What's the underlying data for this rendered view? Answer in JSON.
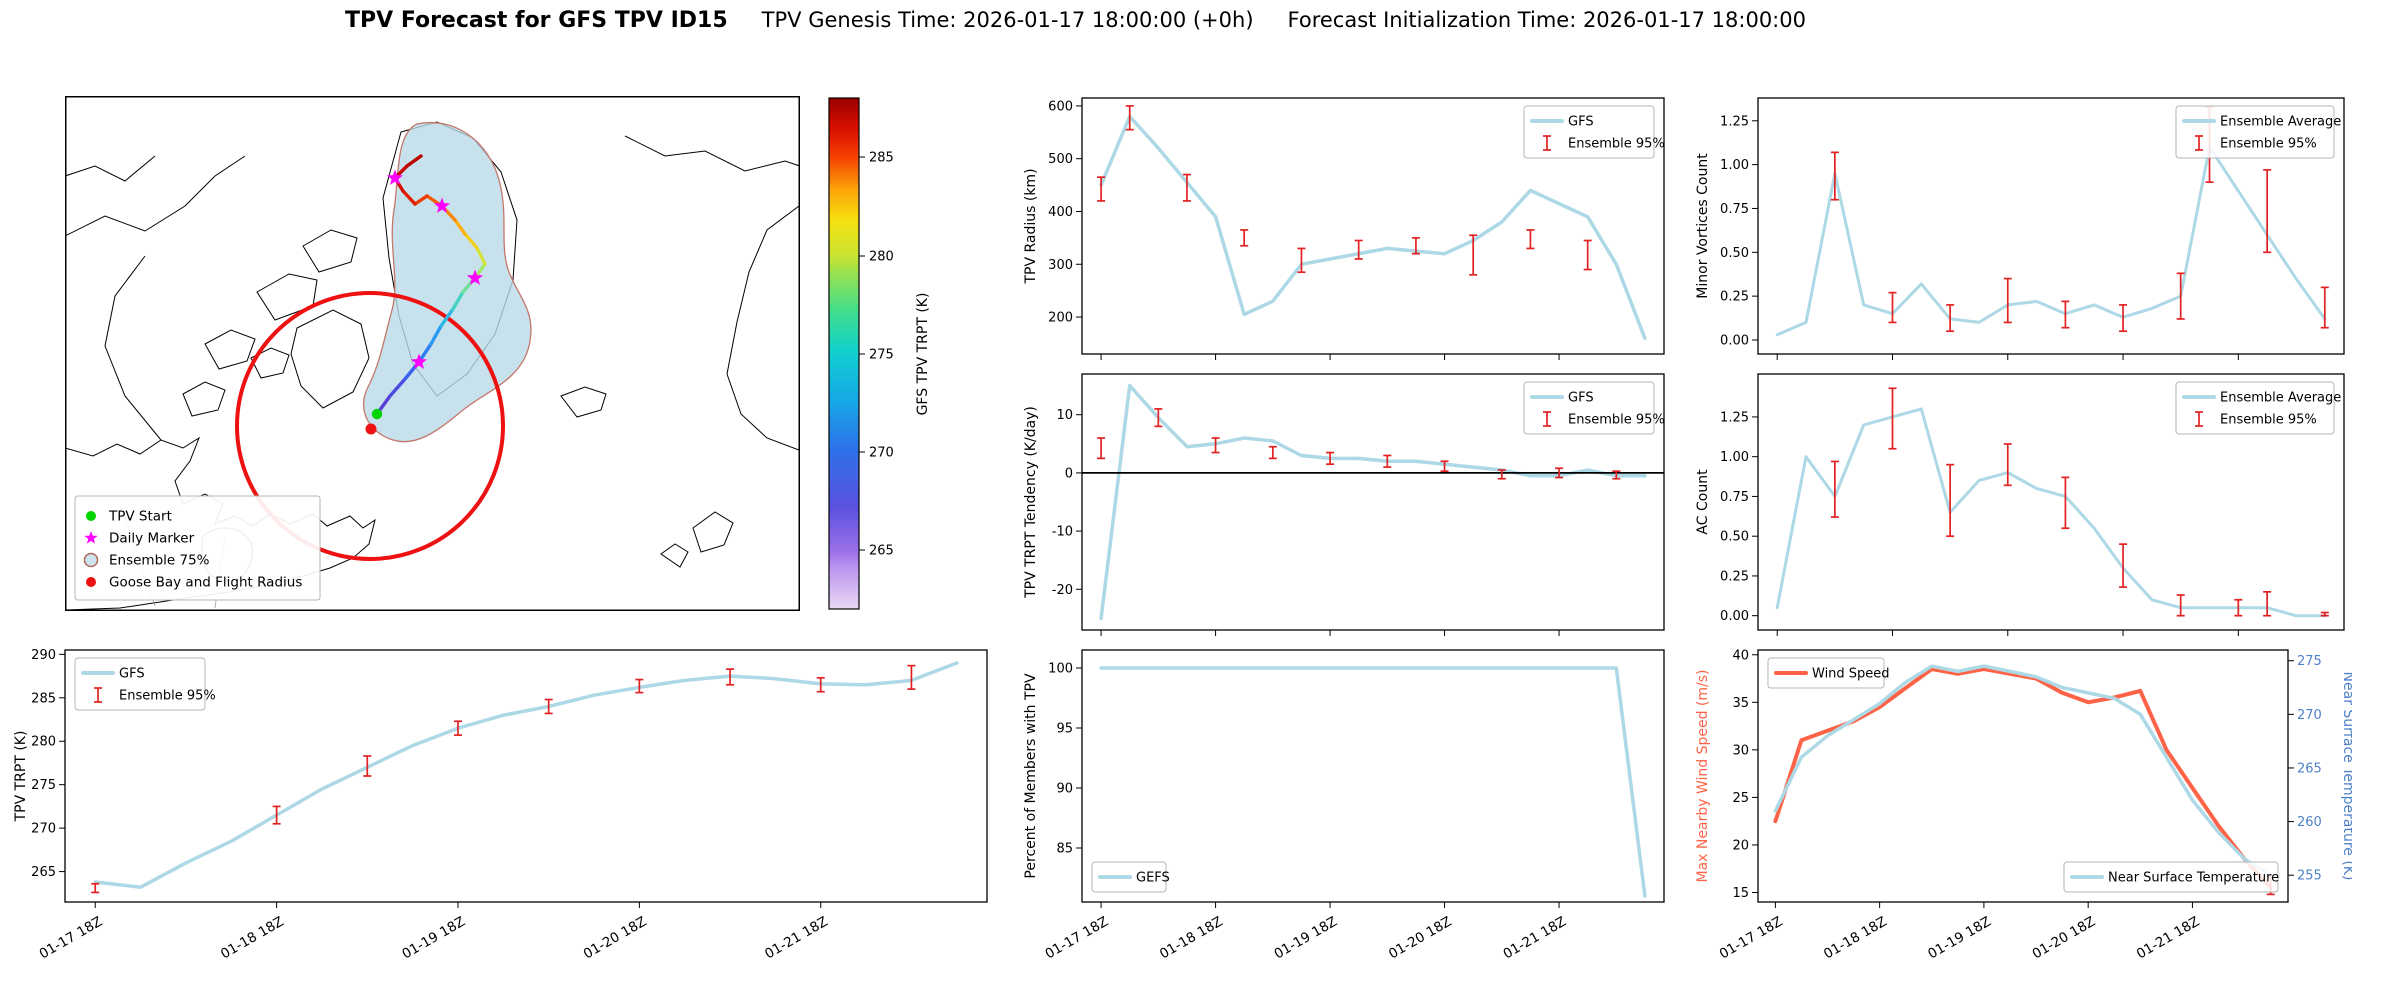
{
  "title": {
    "main": "TPV Forecast for GFS TPV ID15",
    "genesis": "TPV Genesis Time: 2026-01-17 18:00:00 (+0h)",
    "init": "Forecast Initialization Time: 2026-01-17 18:00:00"
  },
  "colors": {
    "ensemble_line": "#add8e6",
    "error_bar": "#e22222",
    "wind_line": "#ff6347",
    "temp_axis": "#4f81c7",
    "flight_circle": "#ee1111",
    "ensemble_region_fill": "#b9dbe7",
    "ensemble_region_edge": "#c4766a"
  },
  "map": {
    "legend": [
      {
        "label": "TPV Start",
        "marker": "dot",
        "color": "#00d500"
      },
      {
        "label": "Daily Marker",
        "marker": "star",
        "color": "#ff00ff"
      },
      {
        "label": "Ensemble 75%",
        "marker": "ring",
        "color": "#b06858"
      },
      {
        "label": "Goose Bay and Flight Radius",
        "marker": "dot",
        "color": "#ee1111"
      }
    ],
    "colorbar": {
      "label": "GFS TPV TRPT (K)",
      "ticks": [
        "265",
        "270",
        "275",
        "280",
        "285"
      ]
    },
    "track": {
      "points": [
        [
          312,
          318
        ],
        [
          325,
          300
        ],
        [
          340,
          283
        ],
        [
          354,
          266
        ],
        [
          366,
          248
        ],
        [
          376,
          230
        ],
        [
          388,
          213
        ],
        [
          398,
          196
        ],
        [
          410,
          182
        ],
        [
          420,
          168
        ],
        [
          412,
          152
        ],
        [
          400,
          138
        ],
        [
          390,
          124
        ],
        [
          377,
          110
        ],
        [
          362,
          100
        ],
        [
          350,
          108
        ],
        [
          338,
          95
        ],
        [
          330,
          82
        ],
        [
          342,
          70
        ],
        [
          356,
          60
        ]
      ],
      "colors": [
        "#5b3fd4",
        "#4a4ae0",
        "#3a60ec",
        "#2f7df2",
        "#2a9bf0",
        "#2fb9e2",
        "#45d2c2",
        "#6fe09a",
        "#a2e668",
        "#d4e33c",
        "#f2cf1f",
        "#fcae0e",
        "#fb8605",
        "#f55c02",
        "#ec3a01",
        "#e02000",
        "#d41000",
        "#c80500",
        "#bb0000"
      ],
      "star_indices": [
        3,
        8,
        13,
        17
      ],
      "star_color": "#ff00ff",
      "start_color": "#00d500"
    },
    "goose_bay_xy": [
      306,
      333
    ],
    "goose_bay_color": "#ee1111"
  },
  "chart_data": {
    "time": {
      "hours": [
        0,
        6,
        12,
        18,
        24,
        30,
        36,
        42,
        48,
        54,
        60,
        66,
        72,
        78,
        84,
        90,
        96,
        102,
        108,
        114
      ],
      "xlim": [
        -4,
        118
      ],
      "tick_hours": [
        0,
        24,
        48,
        72,
        96
      ],
      "tick_labels": [
        "01-17 18Z",
        "01-18 18Z",
        "01-19 18Z",
        "01-20 18Z",
        "01-21 18Z"
      ]
    },
    "charts": {
      "tpv_trpt": {
        "type": "line",
        "ylabel": "TPV TRPT (K)",
        "ylim": [
          261.5,
          290.5
        ],
        "yticks": [
          [
            265,
            "265"
          ],
          [
            270,
            "270"
          ],
          [
            275,
            "275"
          ],
          [
            280,
            "280"
          ],
          [
            285,
            "285"
          ],
          [
            290,
            "290"
          ]
        ],
        "show_x_labels": true,
        "legends": [
          {
            "pos": "top-left",
            "entries": [
              {
                "type": "line",
                "label": "GFS",
                "color": "#add8e6"
              },
              {
                "type": "err",
                "label": "Ensemble 95%"
              }
            ]
          }
        ],
        "series": [
          {
            "name": "GFS",
            "color": "#add8e6",
            "width": 3.5,
            "values": [
              263.8,
              263.2,
              266.0,
              268.5,
              271.5,
              274.5,
              277.0,
              279.5,
              281.5,
              283.0,
              284.0,
              285.3,
              286.2,
              287.0,
              287.5,
              287.2,
              286.6,
              286.5,
              287.0,
              289.0
            ]
          }
        ],
        "errorbars": [
          [
            0,
            262.6,
            263.6
          ],
          [
            24,
            270.5,
            272.5
          ],
          [
            36,
            276.0,
            278.3
          ],
          [
            48,
            280.7,
            282.3
          ],
          [
            60,
            283.2,
            284.8
          ],
          [
            72,
            285.6,
            287.1
          ],
          [
            84,
            286.5,
            288.3
          ],
          [
            96,
            285.7,
            287.3
          ],
          [
            108,
            286.0,
            288.7
          ]
        ]
      },
      "tpv_radius": {
        "type": "line",
        "ylabel": "TPV Radius (km)",
        "ylim": [
          130,
          615
        ],
        "yticks": [
          [
            200,
            "200"
          ],
          [
            300,
            "300"
          ],
          [
            400,
            "400"
          ],
          [
            500,
            "500"
          ],
          [
            600,
            "600"
          ]
        ],
        "show_x_labels": false,
        "legends": [
          {
            "pos": "top-right",
            "entries": [
              {
                "type": "line",
                "label": "GFS",
                "color": "#add8e6"
              },
              {
                "type": "err",
                "label": "Ensemble 95%"
              }
            ]
          }
        ],
        "series": [
          {
            "name": "GFS",
            "color": "#add8e6",
            "width": 3.5,
            "values": [
              450,
              580,
              520,
              455,
              390,
              205,
              230,
              300,
              310,
              320,
              330,
              325,
              320,
              345,
              380,
              440,
              415,
              390,
              300,
              160
            ]
          }
        ],
        "errorbars": [
          [
            0,
            420,
            465
          ],
          [
            6,
            555,
            600
          ],
          [
            18,
            420,
            470
          ],
          [
            30,
            335,
            365
          ],
          [
            42,
            285,
            330
          ],
          [
            54,
            310,
            345
          ],
          [
            66,
            320,
            350
          ],
          [
            78,
            280,
            355
          ],
          [
            90,
            330,
            365
          ],
          [
            102,
            290,
            345
          ]
        ]
      },
      "trpt_tendency": {
        "type": "line",
        "ylabel": "TPV TRPT Tendency (K/day)",
        "ylim": [
          -27,
          17
        ],
        "yticks": [
          [
            -20,
            "-20"
          ],
          [
            -10,
            "-10"
          ],
          [
            0,
            "0"
          ],
          [
            10,
            "10"
          ]
        ],
        "zero_line": true,
        "show_x_labels": false,
        "legends": [
          {
            "pos": "top-right",
            "entries": [
              {
                "type": "line",
                "label": "GFS",
                "color": "#add8e6"
              },
              {
                "type": "err",
                "label": "Ensemble 95%"
              }
            ]
          }
        ],
        "series": [
          {
            "name": "GFS",
            "color": "#add8e6",
            "width": 3.5,
            "values": [
              -25,
              15,
              9.5,
              4.5,
              5,
              6,
              5.5,
              3,
              2.5,
              2.5,
              2,
              2,
              1.5,
              1,
              0.5,
              -0.5,
              -0.5,
              0.5,
              -0.5,
              -0.5
            ]
          }
        ],
        "errorbars": [
          [
            0,
            2.5,
            6
          ],
          [
            12,
            8,
            11
          ],
          [
            24,
            3.5,
            6
          ],
          [
            36,
            2.5,
            4.5
          ],
          [
            48,
            1.5,
            3.5
          ],
          [
            60,
            1,
            3
          ],
          [
            72,
            0.3,
            2
          ],
          [
            84,
            -1,
            0.5
          ],
          [
            96,
            -0.8,
            0.8
          ],
          [
            108,
            -1,
            0.3
          ]
        ]
      },
      "percent_members": {
        "type": "line",
        "ylabel": "Percent of Members with TPV",
        "ylim": [
          80.5,
          101.5
        ],
        "yticks": [
          [
            85,
            "85"
          ],
          [
            90,
            "90"
          ],
          [
            95,
            "95"
          ],
          [
            100,
            "100"
          ]
        ],
        "show_x_labels": true,
        "legends": [
          {
            "pos": "bottom-left",
            "entries": [
              {
                "type": "line",
                "label": "GEFS",
                "color": "#add8e6"
              }
            ]
          }
        ],
        "series": [
          {
            "name": "GEFS",
            "color": "#add8e6",
            "width": 3.5,
            "values": [
              100,
              100,
              100,
              100,
              100,
              100,
              100,
              100,
              100,
              100,
              100,
              100,
              100,
              100,
              100,
              100,
              100,
              100,
              100,
              81
            ]
          }
        ]
      },
      "minor_vortices": {
        "type": "line",
        "ylabel": "Minor Vortices Count",
        "ylim": [
          -0.08,
          1.38
        ],
        "yticks": [
          [
            0,
            "0.00"
          ],
          [
            0.25,
            "0.25"
          ],
          [
            0.5,
            "0.50"
          ],
          [
            0.75,
            "0.75"
          ],
          [
            1,
            "1.00"
          ],
          [
            1.25,
            "1.25"
          ]
        ],
        "show_x_labels": false,
        "legends": [
          {
            "pos": "top-right",
            "entries": [
              {
                "type": "line",
                "label": "Ensemble Average",
                "color": "#add8e6"
              },
              {
                "type": "err",
                "label": "Ensemble 95%"
              }
            ]
          }
        ],
        "series": [
          {
            "name": "Ensemble Average",
            "color": "#add8e6",
            "width": 3,
            "values": [
              0.03,
              0.1,
              0.95,
              0.2,
              0.15,
              0.32,
              0.12,
              0.1,
              0.2,
              0.22,
              0.15,
              0.2,
              0.13,
              0.18,
              0.25,
              1.1,
              0.85,
              0.6,
              0.35,
              0.12
            ]
          }
        ],
        "errorbars": [
          [
            12,
            0.8,
            1.07
          ],
          [
            24,
            0.1,
            0.27
          ],
          [
            36,
            0.05,
            0.2
          ],
          [
            48,
            0.1,
            0.35
          ],
          [
            60,
            0.07,
            0.22
          ],
          [
            72,
            0.05,
            0.2
          ],
          [
            84,
            0.12,
            0.38
          ],
          [
            90,
            0.9,
            1.33
          ],
          [
            102,
            0.5,
            0.97
          ],
          [
            114,
            0.07,
            0.3
          ]
        ]
      },
      "ac_count": {
        "type": "line",
        "ylabel": "AC Count",
        "ylim": [
          -0.09,
          1.52
        ],
        "yticks": [
          [
            0,
            "0.00"
          ],
          [
            0.25,
            "0.25"
          ],
          [
            0.5,
            "0.50"
          ],
          [
            0.75,
            "0.75"
          ],
          [
            1,
            "1.00"
          ],
          [
            1.25,
            "1.25"
          ]
        ],
        "show_x_labels": false,
        "legends": [
          {
            "pos": "top-right",
            "entries": [
              {
                "type": "line",
                "label": "Ensemble Average",
                "color": "#add8e6"
              },
              {
                "type": "err",
                "label": "Ensemble 95%"
              }
            ]
          }
        ],
        "series": [
          {
            "name": "Ensemble Average",
            "color": "#add8e6",
            "width": 3,
            "values": [
              0.05,
              1.0,
              0.75,
              1.2,
              1.25,
              1.3,
              0.65,
              0.85,
              0.9,
              0.8,
              0.75,
              0.55,
              0.3,
              0.1,
              0.05,
              0.05,
              0.05,
              0.05,
              0.0,
              0.0
            ]
          }
        ],
        "errorbars": [
          [
            12,
            0.62,
            0.97
          ],
          [
            24,
            1.05,
            1.43
          ],
          [
            36,
            0.5,
            0.95
          ],
          [
            48,
            0.82,
            1.08
          ],
          [
            60,
            0.55,
            0.87
          ],
          [
            72,
            0.18,
            0.45
          ],
          [
            84,
            0.0,
            0.13
          ],
          [
            96,
            0.0,
            0.1
          ],
          [
            102,
            0.0,
            0.15
          ],
          [
            114,
            0.0,
            0.02
          ]
        ]
      },
      "wind_temp": {
        "type": "line",
        "ylabel": "Max Nearby Wind Speed (m/s)",
        "ylabel_color": "#ff6347",
        "ylim": [
          14,
          40.5
        ],
        "yticks": [
          [
            15,
            "15"
          ],
          [
            20,
            "20"
          ],
          [
            25,
            "25"
          ],
          [
            30,
            "30"
          ],
          [
            35,
            "35"
          ],
          [
            40,
            "40"
          ]
        ],
        "ylabel2": "Near Surface Temperature (K)",
        "y2_color": "#4f81c7",
        "ylim2": [
          252.5,
          276
        ],
        "yticks2": [
          [
            255,
            "255"
          ],
          [
            260,
            "260"
          ],
          [
            265,
            "265"
          ],
          [
            270,
            "270"
          ],
          [
            275,
            "275"
          ]
        ],
        "show_x_labels": true,
        "legends": [
          {
            "pos": "top-left",
            "entries": [
              {
                "type": "line",
                "label": "Wind Speed",
                "color": "#ff6347"
              }
            ]
          },
          {
            "pos": "bottom-right",
            "entries": [
              {
                "type": "line",
                "label": "Near Surface Temperature",
                "color": "#add8e6"
              }
            ]
          }
        ],
        "series": [
          {
            "name": "Wind Speed",
            "color": "#ff6347",
            "width": 4,
            "values": [
              22.5,
              31,
              32,
              33,
              34.5,
              36.5,
              38.5,
              38,
              38.5,
              38,
              37.5,
              36,
              35,
              35.5,
              36.2,
              30,
              26,
              22,
              18.5,
              15.5
            ]
          },
          {
            "name": "Near Surface Temperature",
            "color": "#add8e6",
            "width": 3.5,
            "axis": 2,
            "values": [
              261,
              266,
              268,
              269.5,
              271,
              273,
              274.5,
              274,
              274.5,
              274,
              273.5,
              272.5,
              272,
              271.5,
              270,
              266,
              262,
              259,
              256.5,
              255
            ]
          }
        ],
        "errorbars": [
          [
            114,
            14.8,
            16.8
          ]
        ]
      }
    }
  }
}
